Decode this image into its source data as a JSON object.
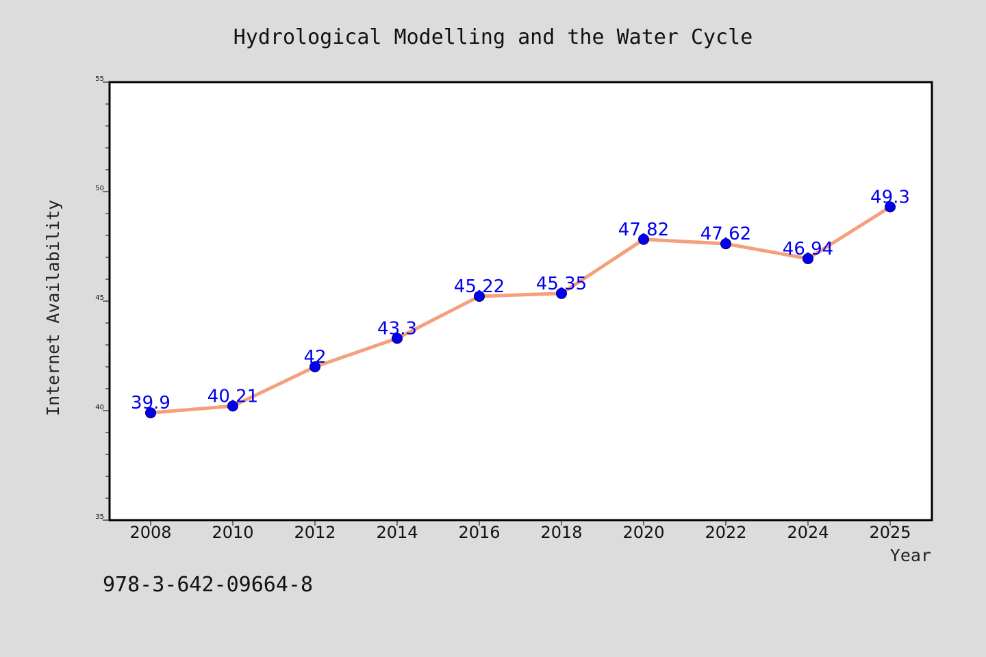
{
  "chart_data": {
    "type": "line",
    "title": "Hydrological Modelling and the Water Cycle",
    "xlabel": "Year",
    "ylabel": "Internet Availability",
    "ylim": [
      35,
      55
    ],
    "y_major_ticks": [
      35,
      40,
      45,
      50,
      55
    ],
    "y_minor_step": 1,
    "x_tick_labels": [
      "2008",
      "2010",
      "2012",
      "2014",
      "2016",
      "2018",
      "2020",
      "2022",
      "2024",
      "2025"
    ],
    "series": [
      {
        "x": [
          "2008",
          "2010",
          "2012",
          "2014",
          "2016",
          "2018",
          "2020",
          "2022",
          "2024",
          "2025"
        ],
        "values": [
          39.9,
          40.21,
          42,
          43.3,
          45.22,
          45.35,
          47.82,
          47.62,
          46.94,
          49.3
        ],
        "labels": [
          "39.9",
          "40.21",
          "42",
          "43.3",
          "45.22",
          "45.35",
          "47.82",
          "47.62",
          "46.94",
          "49.3"
        ],
        "line_color": "#f4a07c",
        "marker_color": "#0000ee",
        "label_color": "#0000ee"
      }
    ],
    "grid": false,
    "legend": "none",
    "plot_background": "#ffffff",
    "page_background": "#dcdcdc"
  },
  "footer_text": "978-3-642-09664-8"
}
